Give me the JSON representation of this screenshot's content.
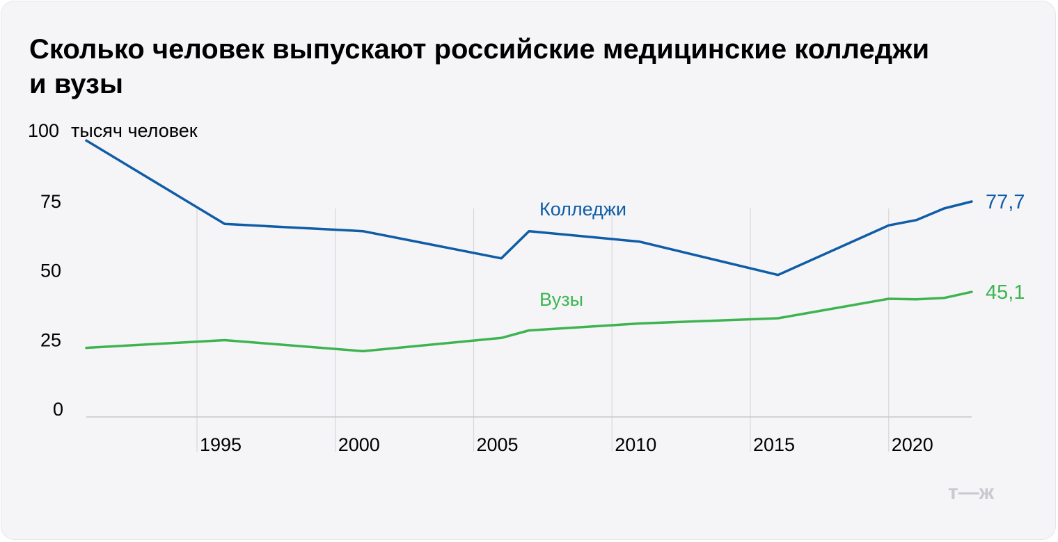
{
  "chart_data": {
    "type": "line",
    "title": "Сколько человек выпускают российские медицинские колледжи и вузы",
    "ylabel": "тысяч человек",
    "ylim": [
      0,
      100
    ],
    "yticks": [
      {
        "value": 100,
        "label": "100"
      },
      {
        "value": 75,
        "label": "75"
      },
      {
        "value": 50,
        "label": "50"
      },
      {
        "value": 25,
        "label": "25"
      },
      {
        "value": 0,
        "label": "0"
      }
    ],
    "xlim": [
      1991,
      2023
    ],
    "xticks": [
      {
        "value": 1995,
        "label": "1995"
      },
      {
        "value": 2000,
        "label": "2000"
      },
      {
        "value": 2005,
        "label": "2005"
      },
      {
        "value": 2010,
        "label": "2010"
      },
      {
        "value": 2015,
        "label": "2015"
      },
      {
        "value": 2020,
        "label": "2020"
      }
    ],
    "series": [
      {
        "name": "Колледжи",
        "color": "#0f5ca7",
        "points": [
          {
            "x": 1991,
            "y": 99.7
          },
          {
            "x": 1996,
            "y": 69.6
          },
          {
            "x": 2001,
            "y": 67.0
          },
          {
            "x": 2006,
            "y": 57.2
          },
          {
            "x": 2007,
            "y": 67.0
          },
          {
            "x": 2011,
            "y": 63.2
          },
          {
            "x": 2016,
            "y": 51.2
          },
          {
            "x": 2020,
            "y": 69.1
          },
          {
            "x": 2021,
            "y": 71.0
          },
          {
            "x": 2022,
            "y": 75.2
          },
          {
            "x": 2023,
            "y": 77.7
          }
        ],
        "end_value_label": "77,7"
      },
      {
        "name": "Вузы",
        "color": "#3db451",
        "points": [
          {
            "x": 1991,
            "y": 24.9
          },
          {
            "x": 1996,
            "y": 27.7
          },
          {
            "x": 2001,
            "y": 23.7
          },
          {
            "x": 2006,
            "y": 28.5
          },
          {
            "x": 2007,
            "y": 31.2
          },
          {
            "x": 2011,
            "y": 33.7
          },
          {
            "x": 2016,
            "y": 35.6
          },
          {
            "x": 2020,
            "y": 42.6
          },
          {
            "x": 2021,
            "y": 42.4
          },
          {
            "x": 2022,
            "y": 42.9
          },
          {
            "x": 2023,
            "y": 45.1
          }
        ],
        "end_value_label": "45,1"
      }
    ]
  },
  "logo": {
    "text": "т—ж"
  }
}
